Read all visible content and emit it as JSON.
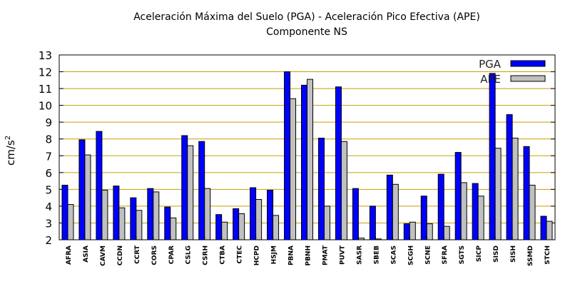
{
  "chart_data": {
    "type": "bar",
    "title": "Aceleración Máxima del Suelo (PGA) -  Aceleración Pico Efectiva (APE)",
    "subtitle": "Componente NS",
    "ylabel": "cm/s",
    "ylabel_sup": "2",
    "ylim": [
      2,
      13
    ],
    "yticks": [
      2,
      3,
      4,
      5,
      6,
      7,
      8,
      9,
      10,
      11,
      12,
      13
    ],
    "grid": true,
    "legend_position": "top-right",
    "categories": [
      "AFRA",
      "ASIA",
      "CAVM",
      "CCDN",
      "CCRT",
      "CORS",
      "CPAR",
      "CSLG",
      "CSRH",
      "CTBA",
      "CTEC",
      "HCPD",
      "HSJM",
      "PBNA",
      "PBNH",
      "PMAT",
      "PUVT",
      "SASR",
      "SBEB",
      "SCAS",
      "SCGH",
      "SCNE",
      "SFRA",
      "SGTS",
      "SICP",
      "SISD",
      "SISH",
      "SSMD",
      "STCH"
    ],
    "series": [
      {
        "name": "PGA",
        "color": "#0000ff",
        "values": [
          5.25,
          7.95,
          8.45,
          5.2,
          4.5,
          5.05,
          3.95,
          8.2,
          7.85,
          3.5,
          3.85,
          5.1,
          4.95,
          12.0,
          11.2,
          8.05,
          11.1,
          5.05,
          4.0,
          5.85,
          2.95,
          4.6,
          5.9,
          7.2,
          5.35,
          11.9,
          9.45,
          7.55,
          3.4
        ]
      },
      {
        "name": "APE",
        "color": "#c0c0c0",
        "values": [
          4.1,
          7.05,
          4.95,
          3.9,
          3.75,
          4.85,
          3.3,
          7.6,
          5.05,
          3.05,
          3.55,
          4.4,
          3.45,
          10.4,
          11.55,
          4.0,
          7.85,
          2.1,
          2.05,
          5.3,
          3.05,
          2.95,
          2.8,
          5.4,
          4.6,
          7.45,
          8.05,
          5.25,
          3.1
        ]
      }
    ]
  }
}
